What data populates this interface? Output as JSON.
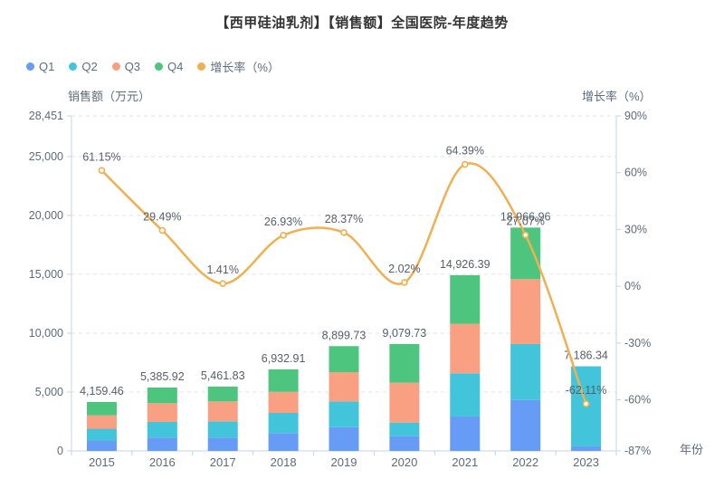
{
  "title": "【西甲硅油乳剂】【销售额】全国医院-年度趋势",
  "legend": {
    "items": [
      {
        "label": "Q1",
        "color": "#669cf6"
      },
      {
        "label": "Q2",
        "color": "#42c5da"
      },
      {
        "label": "Q3",
        "color": "#f9a083"
      },
      {
        "label": "Q4",
        "color": "#4ec57e"
      },
      {
        "label": "增长率（%）",
        "color": "#f0b052"
      }
    ]
  },
  "axis_names": {
    "left": "销售额（万元）",
    "right": "增长率（%）",
    "x": "年份"
  },
  "colors": {
    "q1": "#669cf6",
    "q2": "#42c5da",
    "q3": "#f9a083",
    "q4": "#4ec57e",
    "growth_line": "#f0b052",
    "gridline": "#dee4f0",
    "axis_line": "#c9d3df",
    "tick_text": "#5e6b79",
    "data_label_text": "#565e68",
    "title_text": "#333333"
  },
  "chart_data": {
    "type": "bar",
    "subtype": "stacked-bar-with-line",
    "categories": [
      "2015",
      "2016",
      "2017",
      "2018",
      "2019",
      "2020",
      "2021",
      "2022",
      "2023"
    ],
    "series": [
      {
        "name": "Q1",
        "type": "bar-stack",
        "color": "#669cf6",
        "values": [
          890,
          1130,
          1130,
          1515,
          2020,
          1255,
          2925,
          4330,
          410
        ]
      },
      {
        "name": "Q2",
        "type": "bar-stack",
        "color": "#42c5da",
        "values": [
          990,
          1330,
          1385,
          1715,
          2185,
          1155,
          3670,
          4745,
          6776.34
        ]
      },
      {
        "name": "Q3",
        "type": "bar-stack",
        "color": "#f9a083",
        "values": [
          1140,
          1590,
          1690,
          1790,
          2485,
          3385,
          4200,
          5515,
          0
        ]
      },
      {
        "name": "Q4",
        "type": "bar-stack",
        "color": "#4ec57e",
        "values": [
          1139.46,
          1335.92,
          1256.83,
          1912.91,
          2209.73,
          3284.73,
          4131.39,
          4376.96,
          0
        ]
      }
    ],
    "bar_totals": [
      4159.46,
      5385.92,
      5461.83,
      6932.91,
      8899.73,
      9079.73,
      14926.39,
      18966.96,
      7186.34
    ],
    "bar_total_labels": [
      "4,159.46",
      "5,385.92",
      "5,461.83",
      "6,932.91",
      "8,899.73",
      "9,079.73",
      "14,926.39",
      "18,966.96",
      "7,186.34"
    ],
    "line_series": {
      "name": "增长率（%）",
      "color": "#f0b052",
      "values": [
        61.15,
        29.49,
        1.41,
        26.93,
        28.37,
        2.02,
        64.39,
        27.07,
        -62.11
      ],
      "labels": [
        "61.15%",
        "29.49%",
        "1.41%",
        "26.93%",
        "28.37%",
        "2.02%",
        "64.39%",
        "27.07%",
        "-62.11%"
      ]
    },
    "left_axis": {
      "name": "销售额（万元）",
      "min": 0,
      "max": 28451,
      "ticks": [
        {
          "value": 0,
          "label": "0"
        },
        {
          "value": 5000,
          "label": "5,000"
        },
        {
          "value": 10000,
          "label": "10,000"
        },
        {
          "value": 15000,
          "label": "15,000"
        },
        {
          "value": 20000,
          "label": "20,000"
        },
        {
          "value": 25000,
          "label": "25,000"
        },
        {
          "value": 28451,
          "label": "28,451"
        }
      ]
    },
    "right_axis": {
      "name": "增长率（%）",
      "min": -87,
      "max": 90,
      "ticks": [
        {
          "value": 90,
          "label": "90%"
        },
        {
          "value": 60,
          "label": "60%"
        },
        {
          "value": 30,
          "label": "30%"
        },
        {
          "value": 0,
          "label": "0%"
        },
        {
          "value": -30,
          "label": "-30%"
        },
        {
          "value": -60,
          "label": "-60%"
        },
        {
          "value": -87,
          "label": "-87%"
        }
      ]
    },
    "x_axis": {
      "name": "年份"
    },
    "grid": "dashed-horizontal",
    "legend_position": "top-left"
  }
}
